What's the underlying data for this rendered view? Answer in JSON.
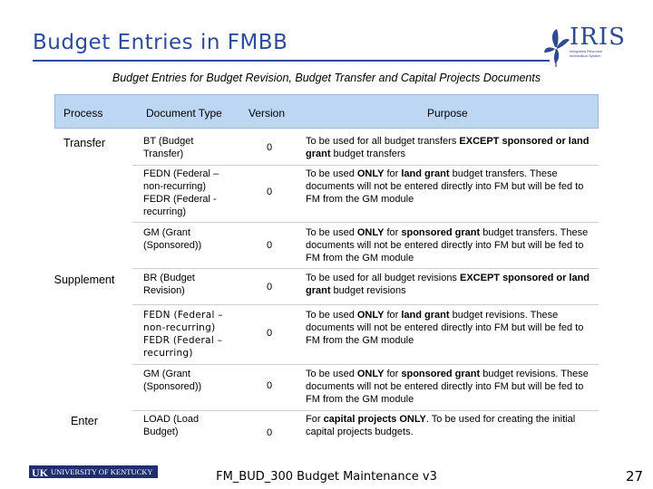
{
  "title": "Budget Entries in FMBB",
  "logo": {
    "word": "IRIS",
    "sub": "Integrated Resource Information System"
  },
  "subtitle": "Budget Entries for Budget Revision, Budget Transfer and Capital Projects Documents",
  "table": {
    "headers": {
      "process": "Process",
      "document_type": "Document Type",
      "version": "Version",
      "purpose": "Purpose"
    },
    "groups": [
      {
        "process": "Transfer"
      },
      {
        "process": "Supplement"
      },
      {
        "process": "Enter"
      }
    ],
    "rows": [
      {
        "doc": "BT (Budget Transfer)",
        "version": "0",
        "p1": "To be used for all budget transfers ",
        "p1b": "EXCEPT sponsored or land grant",
        "p2": " budget transfers",
        "p2b": "",
        "p3": ""
      },
      {
        "doc": "FEDN (Federal – non-recurring) FEDR (Federal - recurring)",
        "version": "0",
        "p1": "To be used ",
        "p1b": "ONLY",
        "p2": " for ",
        "p2b": "land grant",
        "p3": " budget transfers. These documents will not be entered directly into FM but will be fed to FM from the GM module"
      },
      {
        "doc": "GM (Grant (Sponsored))",
        "version": "0",
        "p1": "To be used ",
        "p1b": "ONLY",
        "p2": " for ",
        "p2b": "sponsored grant",
        "p3": " budget transfers. These documents will not be entered directly into FM but will be fed to FM from the GM module"
      },
      {
        "doc": "BR (Budget Revision)",
        "version": "0",
        "p1": "To be used for all budget revisions ",
        "p1b": "EXCEPT sponsored or land grant",
        "p2": " budget revisions",
        "p2b": "",
        "p3": ""
      },
      {
        "doc": "FEDN (Federal – non-recurring) FEDR (Federal – recurring)",
        "version": "0",
        "p1": "To be used ",
        "p1b": "ONLY",
        "p2": " for ",
        "p2b": "land grant",
        "p3": " budget revisions. These documents will not be entered directly into FM but will be fed to FM from the GM module"
      },
      {
        "doc": "GM (Grant (Sponsored))",
        "version": "0",
        "p1": "To be used ",
        "p1b": "ONLY",
        "p2": " for ",
        "p2b": "sponsored grant",
        "p3": " budget revisions. These documents will not be entered directly into FM but will be fed to FM from the GM module"
      },
      {
        "doc": "LOAD (Load Budget)",
        "version": "0",
        "p1": "For ",
        "p1b": "capital projects ONLY",
        "p2": ". To be used for creating the initial capital projects budgets.",
        "p2b": "",
        "p3": ""
      }
    ]
  },
  "footer": {
    "uk_logo_big": "UK",
    "uk_logo_text": "UNIVERSITY OF KENTUCKY",
    "course": "FM_BUD_300 Budget Maintenance v3",
    "page": "27"
  },
  "colors": {
    "title": "#2e4a9a",
    "header_bg": "#bcd6f4",
    "uk_blue": "#1f2f6e"
  }
}
